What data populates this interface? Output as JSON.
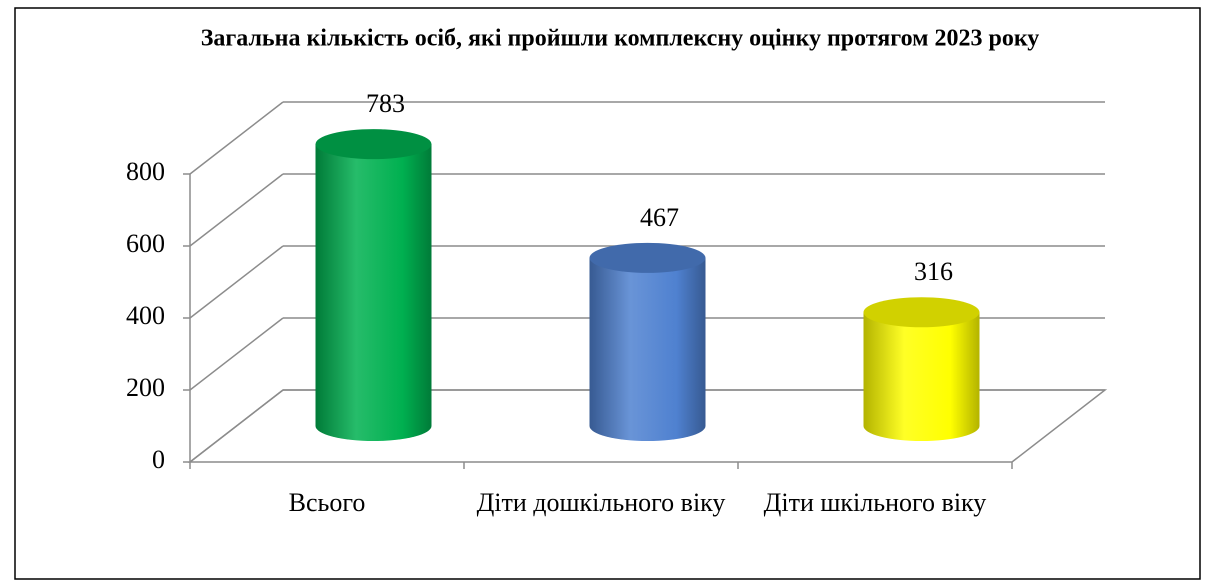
{
  "chart_data": {
    "type": "bar",
    "title": "Загальна кількість осіб, які пройшли комплексну оцінку протягом 2023 року",
    "categories": [
      "Всього",
      "Діти дошкільного віку",
      "Діти шкільного віку"
    ],
    "values": [
      783,
      467,
      316
    ],
    "colors": [
      "#00b050",
      "#4f81d0",
      "#ffff00"
    ],
    "ylim": [
      0,
      800
    ],
    "yticks": [
      0,
      200,
      400,
      600,
      800
    ],
    "grid": true
  }
}
